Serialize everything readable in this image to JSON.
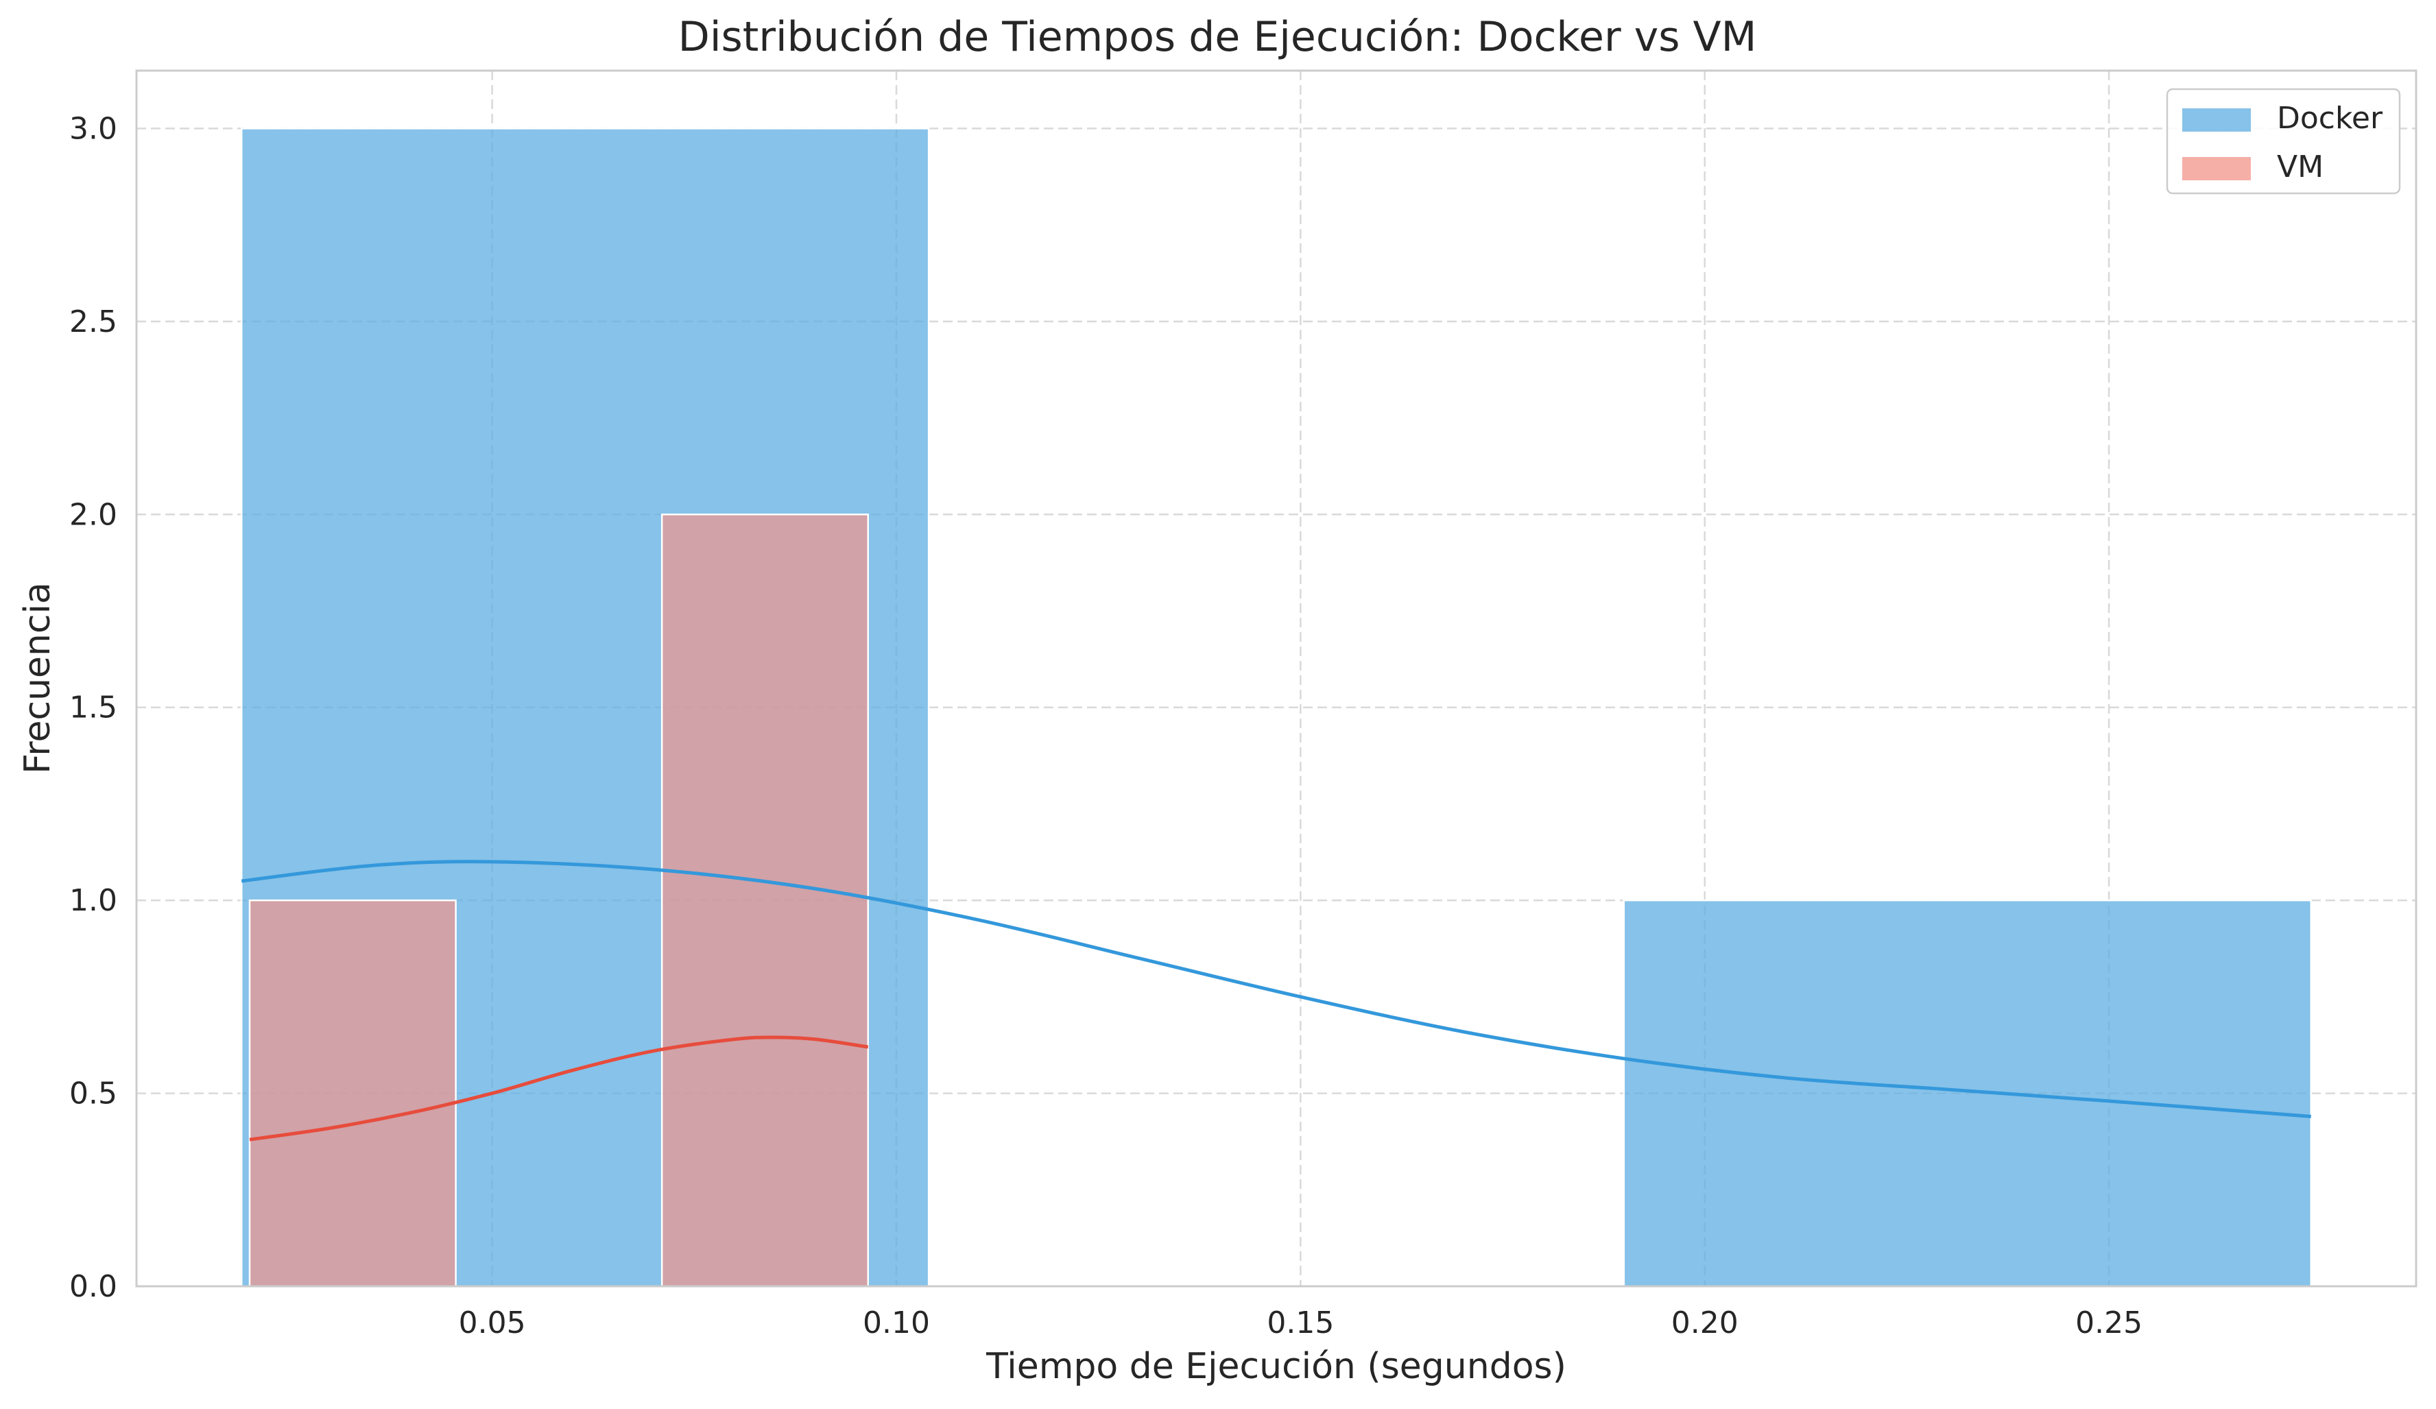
{
  "chart_data": {
    "type": "histogram",
    "title": "Distribución de Tiempos de Ejecución: Docker vs VM",
    "xlabel": "Tiempo de Ejecución (segundos)",
    "ylabel": "Frecuencia",
    "xlim": [
      0.006,
      0.288
    ],
    "ylim": [
      0,
      3.15
    ],
    "xticks": [
      0.05,
      0.1,
      0.15,
      0.2,
      0.25
    ],
    "xtick_labels": [
      "0.05",
      "0.10",
      "0.15",
      "0.20",
      "0.25"
    ],
    "yticks": [
      0.0,
      0.5,
      1.0,
      1.5,
      2.0,
      2.5,
      3.0
    ],
    "ytick_labels": [
      "0.0",
      "0.5",
      "1.0",
      "1.5",
      "2.0",
      "2.5",
      "3.0"
    ],
    "grid": true,
    "legend_position": "top-right",
    "series": [
      {
        "name": "Docker",
        "color": "#5dade2",
        "line_color": "#3498db",
        "bins": [
          {
            "x0": 0.019,
            "x1": 0.104,
            "count": 3
          },
          {
            "x0": 0.104,
            "x1": 0.19,
            "count": 0
          },
          {
            "x0": 0.19,
            "x1": 0.275,
            "count": 1
          }
        ],
        "kde": [
          [
            0.019,
            1.05
          ],
          [
            0.035,
            1.09
          ],
          [
            0.05,
            1.1
          ],
          [
            0.07,
            1.08
          ],
          [
            0.09,
            1.03
          ],
          [
            0.11,
            0.95
          ],
          [
            0.13,
            0.85
          ],
          [
            0.15,
            0.75
          ],
          [
            0.17,
            0.66
          ],
          [
            0.19,
            0.59
          ],
          [
            0.21,
            0.54
          ],
          [
            0.23,
            0.51
          ],
          [
            0.25,
            0.48
          ],
          [
            0.275,
            0.44
          ]
        ]
      },
      {
        "name": "VM",
        "color": "#f1948a",
        "line_color": "#e74c3c",
        "bins": [
          {
            "x0": 0.02,
            "x1": 0.0455,
            "count": 1
          },
          {
            "x0": 0.0455,
            "x1": 0.071,
            "count": 0
          },
          {
            "x0": 0.071,
            "x1": 0.0965,
            "count": 2
          }
        ],
        "kde": [
          [
            0.02,
            0.38
          ],
          [
            0.03,
            0.41
          ],
          [
            0.04,
            0.45
          ],
          [
            0.05,
            0.5
          ],
          [
            0.06,
            0.56
          ],
          [
            0.07,
            0.61
          ],
          [
            0.08,
            0.64
          ],
          [
            0.085,
            0.645
          ],
          [
            0.09,
            0.64
          ],
          [
            0.0965,
            0.62
          ]
        ]
      }
    ]
  }
}
